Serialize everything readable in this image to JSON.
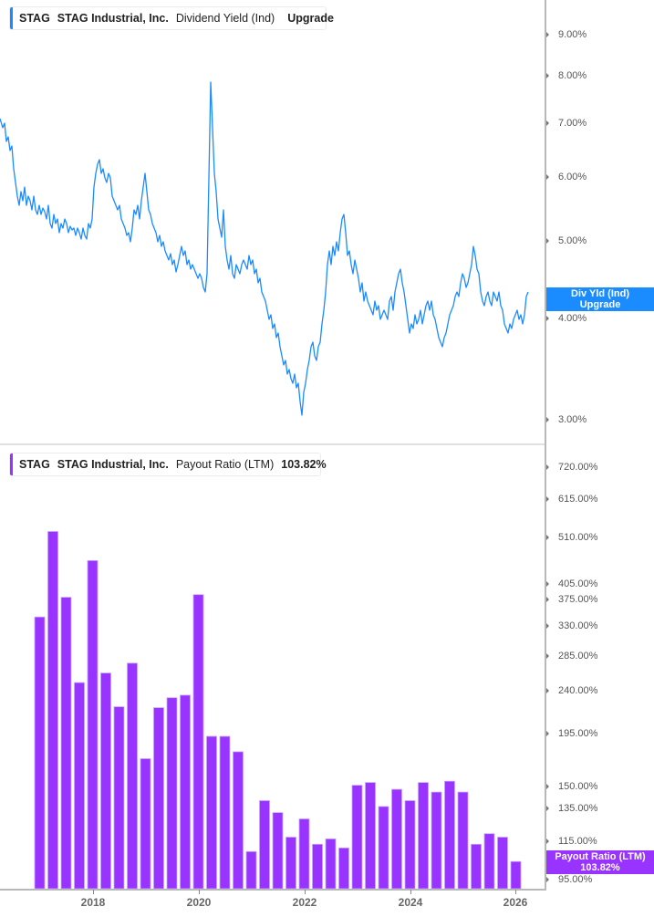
{
  "top_chart": {
    "legend": {
      "ticker": "STAG",
      "company": "STAG Industrial, Inc.",
      "metric": "Dividend Yield (Ind)",
      "value": "Upgrade",
      "color": "#1a8cff"
    },
    "y_ticks": [
      "9.00%",
      "8.00%",
      "7.00%",
      "6.00%",
      "5.00%",
      "4.00%",
      "3.00%"
    ],
    "tag": {
      "line1": "Div Yld (Ind)",
      "line2": "Upgrade",
      "color": "#1a8cff"
    }
  },
  "bottom_chart": {
    "legend": {
      "ticker": "STAG",
      "company": "STAG Industrial, Inc.",
      "metric": "Payout Ratio (LTM)",
      "value": "103.82%",
      "color": "#9933ff"
    },
    "y_ticks": [
      "720.00%",
      "615.00%",
      "510.00%",
      "405.00%",
      "375.00%",
      "330.00%",
      "285.00%",
      "240.00%",
      "195.00%",
      "150.00%",
      "135.00%",
      "115.00%",
      "95.00%"
    ],
    "tag": {
      "line1": "Payout Ratio (LTM)",
      "line2": "103.82%",
      "color": "#9933ff"
    }
  },
  "x_axis": {
    "labels": [
      "2018",
      "2020",
      "2022",
      "2024",
      "2026"
    ]
  },
  "chart_data": [
    {
      "type": "line",
      "title": "STAG Industrial, Inc. Dividend Yield (Ind)",
      "xlabel": "",
      "ylabel": "Dividend Yield",
      "scale": "log",
      "ylim": [
        2.9,
        10.0
      ],
      "x": [
        "2016-11",
        "2017-03",
        "2017-07",
        "2017-11",
        "2018-01",
        "2018-05",
        "2018-09",
        "2019-01",
        "2019-05",
        "2019-09",
        "2020-01",
        "2020-03",
        "2020-06",
        "2020-10",
        "2021-02",
        "2021-06",
        "2021-10",
        "2022-01",
        "2022-05",
        "2022-09",
        "2022-12",
        "2023-04",
        "2023-08",
        "2023-12",
        "2024-04",
        "2024-08",
        "2024-10",
        "2025-02",
        "2025-06",
        "2025-10",
        "2026-02",
        "2026-04"
      ],
      "series": [
        {
          "name": "Dividend Yield (Ind)",
          "values": [
            7.1,
            5.6,
            5.1,
            5.0,
            6.2,
            5.2,
            5.5,
            4.8,
            4.6,
            4.9,
            4.35,
            7.8,
            5.2,
            4.7,
            4.5,
            3.8,
            3.4,
            3.05,
            3.65,
            4.7,
            5.3,
            4.3,
            4.2,
            3.9,
            4.1,
            3.8,
            4.35,
            4.9,
            4.2,
            4.0,
            3.9,
            4.3
          ]
        }
      ],
      "tick_labels": [
        "3.00%",
        "4.00%",
        "5.00%",
        "6.00%",
        "7.00%",
        "8.00%",
        "9.00%"
      ]
    },
    {
      "type": "bar",
      "title": "STAG Industrial, Inc. Payout Ratio (LTM)",
      "xlabel": "",
      "ylabel": "Payout Ratio (LTM)",
      "scale": "log",
      "ylim": [
        90,
        800
      ],
      "categories": [
        "Q4 2016",
        "Q1 2017",
        "Q2 2017",
        "Q3 2017",
        "Q4 2017",
        "Q1 2018",
        "Q2 2018",
        "Q3 2018",
        "Q4 2018",
        "Q1 2019",
        "Q2 2019",
        "Q3 2019",
        "Q4 2019",
        "Q1 2020",
        "Q2 2020",
        "Q3 2020",
        "Q4 2020",
        "Q1 2021",
        "Q2 2021",
        "Q3 2021",
        "Q4 2021",
        "Q1 2022",
        "Q2 2022",
        "Q3 2022",
        "Q4 2022",
        "Q1 2023",
        "Q2 2023",
        "Q3 2023",
        "Q4 2023",
        "Q1 2024",
        "Q2 2024",
        "Q3 2024",
        "Q4 2024",
        "Q1 2025",
        "Q2 2025",
        "Q3 2025",
        "Q4 2025"
      ],
      "values": [
        345,
        525,
        380,
        250,
        455,
        262,
        222,
        275,
        172,
        221,
        232,
        235,
        385,
        192,
        192,
        178,
        109,
        140,
        132,
        117,
        128,
        113,
        116,
        111,
        151,
        153,
        136,
        148,
        140,
        153,
        146,
        154,
        146,
        113,
        119,
        117,
        103.82
      ],
      "tick_labels": [
        "95.00%",
        "115.00%",
        "135.00%",
        "150.00%",
        "195.00%",
        "240.00%",
        "285.00%",
        "330.00%",
        "375.00%",
        "405.00%",
        "510.00%",
        "615.00%",
        "720.00%"
      ],
      "last_value_label": "103.82%"
    }
  ]
}
